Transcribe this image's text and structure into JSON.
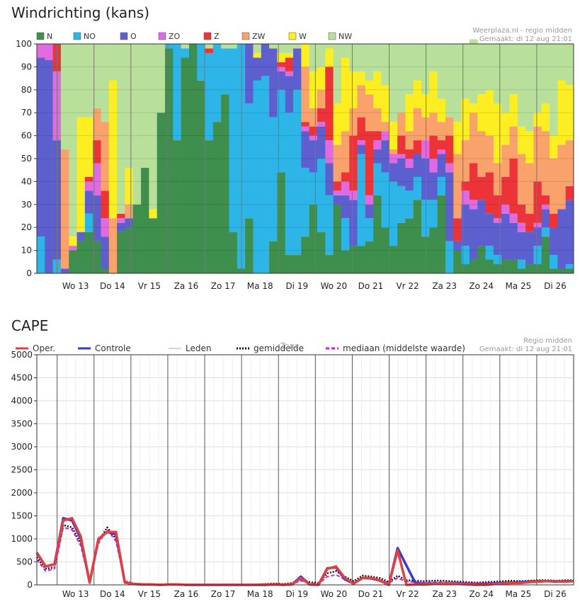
{
  "chart_data": [
    {
      "type": "bar",
      "stacked": true,
      "title": "Windrichting (kans)",
      "source": "Weerplaza.nl - regio midden",
      "created": "Gemaakt: di 12 aug 21:01",
      "ylim": [
        0,
        100
      ],
      "yticks": [
        "0",
        "10",
        "20",
        "30",
        "40",
        "50",
        "60",
        "70",
        "80",
        "90",
        "100"
      ],
      "xtick_labels": [
        "Wo 13",
        "Do 14",
        "Vr 15",
        "Za 16",
        "Zo 17",
        "Ma 18",
        "Di 19",
        "Wo 20",
        "Do 21",
        "Vr 22",
        "Za 23",
        "Zo 24",
        "Ma 25",
        "Di 26"
      ],
      "series_names": [
        "N",
        "NO",
        "O",
        "ZO",
        "Z",
        "ZW",
        "W",
        "NW"
      ],
      "colors": [
        "#3e8e4e",
        "#2db5e8",
        "#5d5fcf",
        "#e06ae0",
        "#ec3438",
        "#f9a26c",
        "#fcee21",
        "#b9e09a"
      ],
      "bars": [
        [
          0,
          16,
          78,
          6,
          0,
          0,
          0,
          0
        ],
        [
          0,
          0,
          93,
          7,
          0,
          0,
          0,
          0
        ],
        [
          0,
          6,
          52,
          30,
          12,
          0,
          0,
          0
        ],
        [
          0,
          0,
          2,
          0,
          0,
          52,
          0,
          46
        ],
        [
          10,
          0,
          0,
          2,
          0,
          0,
          4,
          84
        ],
        [
          14,
          0,
          4,
          0,
          0,
          0,
          50,
          32
        ],
        [
          18,
          8,
          10,
          4,
          2,
          0,
          26,
          32
        ],
        [
          14,
          0,
          20,
          14,
          10,
          14,
          0,
          28
        ],
        [
          2,
          0,
          14,
          8,
          12,
          30,
          0,
          34
        ],
        [
          0,
          0,
          0,
          0,
          0,
          24,
          60,
          16
        ],
        [
          18,
          0,
          4,
          2,
          2,
          0,
          0,
          74
        ],
        [
          20,
          0,
          4,
          0,
          0,
          6,
          16,
          54
        ],
        [
          30,
          0,
          0,
          0,
          0,
          0,
          0,
          70
        ],
        [
          46,
          0,
          0,
          0,
          0,
          0,
          0,
          54
        ],
        [
          24,
          0,
          0,
          0,
          0,
          0,
          4,
          72
        ],
        [
          70,
          0,
          0,
          0,
          0,
          0,
          0,
          30
        ],
        [
          98,
          2,
          0,
          0,
          0,
          0,
          0,
          0
        ],
        [
          58,
          42,
          0,
          0,
          0,
          0,
          0,
          0
        ],
        [
          94,
          4,
          0,
          0,
          0,
          0,
          0,
          2
        ],
        [
          100,
          0,
          0,
          0,
          0,
          0,
          0,
          0
        ],
        [
          84,
          16,
          0,
          0,
          0,
          0,
          0,
          0
        ],
        [
          58,
          38,
          0,
          0,
          2,
          0,
          0,
          2
        ],
        [
          66,
          34,
          0,
          0,
          0,
          0,
          0,
          0
        ],
        [
          78,
          20,
          0,
          0,
          0,
          0,
          0,
          2
        ],
        [
          18,
          80,
          0,
          0,
          0,
          0,
          0,
          2
        ],
        [
          2,
          98,
          0,
          0,
          0,
          0,
          0,
          0
        ],
        [
          24,
          50,
          26,
          0,
          0,
          0,
          0,
          0
        ],
        [
          0,
          84,
          10,
          0,
          0,
          0,
          2,
          4
        ],
        [
          0,
          86,
          14,
          0,
          0,
          0,
          0,
          0
        ],
        [
          14,
          54,
          30,
          0,
          0,
          0,
          0,
          2
        ],
        [
          44,
          36,
          8,
          2,
          2,
          0,
          4,
          4
        ],
        [
          8,
          62,
          16,
          2,
          6,
          0,
          2,
          4
        ],
        [
          8,
          72,
          18,
          0,
          0,
          0,
          0,
          2
        ],
        [
          16,
          30,
          16,
          2,
          2,
          24,
          10,
          0
        ],
        [
          30,
          14,
          14,
          2,
          4,
          8,
          16,
          12
        ],
        [
          18,
          32,
          14,
          2,
          6,
          8,
          10,
          10
        ],
        [
          8,
          26,
          14,
          10,
          32,
          0,
          8,
          2
        ],
        [
          30,
          0,
          4,
          2,
          4,
          16,
          18,
          26
        ],
        [
          10,
          14,
          10,
          6,
          4,
          18,
          32,
          6
        ],
        [
          12,
          0,
          20,
          4,
          24,
          12,
          16,
          12
        ],
        [
          12,
          40,
          4,
          2,
          10,
          14,
          6,
          12
        ],
        [
          14,
          10,
          6,
          4,
          28,
          16,
          6,
          16
        ],
        [
          34,
          14,
          6,
          4,
          4,
          10,
          16,
          12
        ],
        [
          20,
          24,
          14,
          4,
          0,
          4,
          16,
          18
        ],
        [
          12,
          28,
          8,
          4,
          0,
          2,
          12,
          34
        ],
        [
          22,
          16,
          12,
          2,
          8,
          10,
          0,
          30
        ],
        [
          24,
          12,
          10,
          4,
          4,
          8,
          16,
          22
        ],
        [
          32,
          10,
          10,
          0,
          6,
          14,
          12,
          16
        ],
        [
          16,
          16,
          18,
          8,
          0,
          10,
          10,
          22
        ],
        [
          20,
          12,
          12,
          6,
          10,
          10,
          18,
          12
        ],
        [
          34,
          8,
          10,
          2,
          4,
          8,
          10,
          24
        ],
        [
          0,
          14,
          30,
          4,
          12,
          8,
          0,
          32
        ],
        [
          10,
          0,
          4,
          0,
          10,
          28,
          14,
          34
        ],
        [
          4,
          8,
          18,
          6,
          4,
          18,
          18,
          24
        ],
        [
          6,
          0,
          22,
          4,
          16,
          22,
          4,
          28
        ],
        [
          12,
          0,
          20,
          0,
          10,
          20,
          16,
          22
        ],
        [
          6,
          6,
          14,
          0,
          18,
          16,
          20,
          20
        ],
        [
          4,
          4,
          14,
          2,
          10,
          14,
          26,
          26
        ],
        [
          6,
          0,
          20,
          4,
          12,
          14,
          14,
          30
        ],
        [
          6,
          0,
          16,
          4,
          24,
          14,
          14,
          22
        ],
        [
          2,
          4,
          12,
          4,
          8,
          22,
          12,
          36
        ],
        [
          4,
          0,
          14,
          0,
          8,
          22,
          14,
          38
        ],
        [
          4,
          8,
          8,
          2,
          18,
          24,
          6,
          30
        ],
        [
          16,
          4,
          8,
          2,
          4,
          28,
          12,
          26
        ],
        [
          2,
          6,
          12,
          0,
          6,
          24,
          10,
          40
        ],
        [
          2,
          0,
          26,
          0,
          0,
          28,
          28,
          16
        ],
        [
          2,
          2,
          28,
          0,
          6,
          20,
          24,
          18
        ]
      ]
    },
    {
      "type": "line",
      "title": "CAPE",
      "source": "Regio midden",
      "created": "Gemaakt: di 12 aug 21:01",
      "ylim": [
        0,
        5000
      ],
      "yticks": [
        "0",
        "500",
        "1000",
        "1500",
        "2000",
        "2500",
        "3000",
        "3500",
        "4000",
        "4500",
        "5000"
      ],
      "xtick_labels": [
        "Wo 13",
        "Do 14",
        "Vr 15",
        "Za 16",
        "Zo 17",
        "Ma 18",
        "Di 19",
        "Wo 20",
        "Do 21",
        "Vr 22",
        "Za 23",
        "Zo 24",
        "Ma 25",
        "Di 26"
      ],
      "legend": [
        {
          "name": "Oper.",
          "color": "#e04040",
          "style": "solid"
        },
        {
          "name": "Controle",
          "color": "#3a3ad0",
          "style": "solid"
        },
        {
          "name": "Leden",
          "color": "#7fc97f",
          "style": "thin"
        },
        {
          "name": "gemiddelde",
          "color": "#111111",
          "style": "dotted"
        },
        {
          "name": "mediaan (middelste waarde)",
          "color": "#d020d0",
          "style": "dashed"
        }
      ],
      "overlay_text": "Tour",
      "series": [
        {
          "name": "Oper.",
          "values": [
            700,
            400,
            450,
            1400,
            1450,
            1050,
            50,
            1000,
            1150,
            1150,
            50,
            20,
            10,
            10,
            0,
            10,
            10,
            0,
            0,
            0,
            0,
            0,
            0,
            0,
            0,
            0,
            0,
            10,
            0,
            10,
            150,
            10,
            0,
            350,
            400,
            150,
            30,
            150,
            150,
            100,
            0,
            750,
            0,
            10,
            10,
            20,
            30,
            30,
            20,
            10,
            0,
            0,
            20,
            30,
            40,
            40,
            60,
            70,
            80,
            80,
            70,
            80
          ]
        },
        {
          "name": "Controle",
          "values": [
            700,
            400,
            450,
            1450,
            1400,
            1000,
            50,
            1000,
            1150,
            1100,
            50,
            20,
            10,
            10,
            0,
            10,
            10,
            0,
            0,
            0,
            0,
            0,
            0,
            0,
            0,
            0,
            0,
            10,
            0,
            10,
            180,
            10,
            0,
            360,
            380,
            120,
            30,
            150,
            140,
            90,
            0,
            800,
            420,
            50,
            20,
            30,
            30,
            30,
            30,
            20,
            10,
            20,
            30,
            40,
            50,
            60,
            70,
            80,
            80,
            70,
            80,
            80
          ]
        },
        {
          "name": "gemiddelde",
          "values": [
            600,
            350,
            380,
            1300,
            1250,
            900,
            80,
            950,
            1250,
            1000,
            80,
            30,
            20,
            10,
            10,
            10,
            10,
            5,
            5,
            5,
            5,
            5,
            5,
            5,
            5,
            10,
            20,
            30,
            20,
            40,
            120,
            60,
            40,
            250,
            300,
            180,
            80,
            200,
            180,
            150,
            60,
            200,
            100,
            90,
            80,
            90,
            90,
            80,
            70,
            60,
            50,
            60,
            70,
            80,
            90,
            80,
            90,
            100,
            100,
            90,
            100,
            100
          ]
        },
        {
          "name": "mediaan (middelste waarde)",
          "values": [
            550,
            300,
            350,
            1250,
            1200,
            850,
            60,
            900,
            1200,
            950,
            60,
            20,
            10,
            5,
            5,
            5,
            5,
            5,
            5,
            5,
            5,
            5,
            5,
            5,
            5,
            5,
            10,
            20,
            10,
            20,
            90,
            40,
            20,
            180,
            220,
            120,
            50,
            140,
            130,
            110,
            40,
            150,
            70,
            60,
            50,
            60,
            60,
            60,
            50,
            40,
            40,
            40,
            50,
            60,
            60,
            60,
            70,
            70,
            80,
            70,
            80,
            80
          ]
        }
      ]
    }
  ]
}
